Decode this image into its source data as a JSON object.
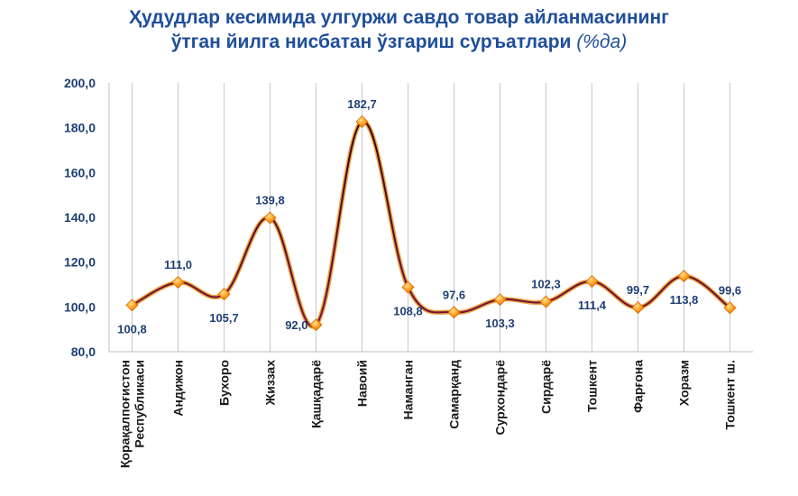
{
  "chart_data": {
    "type": "line",
    "title_line1": "Ҳудудлар кесимида улгуржи савдо товар айланмасининг",
    "title_line2": "ўтган йилга нисбатан ўзгариш суръатлари",
    "title_unit": "(%да)",
    "categories": [
      [
        "Қорақалпоғистон",
        "Республикаси"
      ],
      [
        "Андижон"
      ],
      [
        "Бухоро"
      ],
      [
        "Жиззах"
      ],
      [
        "Қашқадарё"
      ],
      [
        "Навоий"
      ],
      [
        "Наманган"
      ],
      [
        "Самарқанд"
      ],
      [
        "Сурхондарё"
      ],
      [
        "Сирдарё"
      ],
      [
        "Тошкент"
      ],
      [
        "Фарғона"
      ],
      [
        "Хоразм"
      ],
      [
        "Тошкент ш."
      ]
    ],
    "values": [
      100.8,
      111.0,
      105.7,
      139.8,
      92.0,
      182.7,
      108.8,
      97.6,
      103.3,
      102.3,
      111.4,
      99.7,
      113.8,
      99.6
    ],
    "value_labels": [
      "100,8",
      "111,0",
      "105,7",
      "139,8",
      "92,0",
      "182,7",
      "108,8",
      "97,6",
      "103,3",
      "102,3",
      "111,4",
      "99,7",
      "113,8",
      "99,6"
    ],
    "label_side": [
      "below",
      "above",
      "below",
      "above",
      "left",
      "above",
      "below",
      "above",
      "below",
      "above",
      "below",
      "above",
      "below",
      "above"
    ],
    "yticks": [
      80,
      100,
      120,
      140,
      160,
      180,
      200
    ],
    "ytick_labels": [
      "80,0",
      "100,0",
      "120,0",
      "140,0",
      "160,0",
      "180,0",
      "200,0"
    ],
    "ylim": [
      80,
      200
    ],
    "line_color": "#e8a23a",
    "line_dark_color": "#6a0a3a",
    "marker_color": "#ff9a1a",
    "title_color": "#1f4e9a",
    "grid": true
  }
}
